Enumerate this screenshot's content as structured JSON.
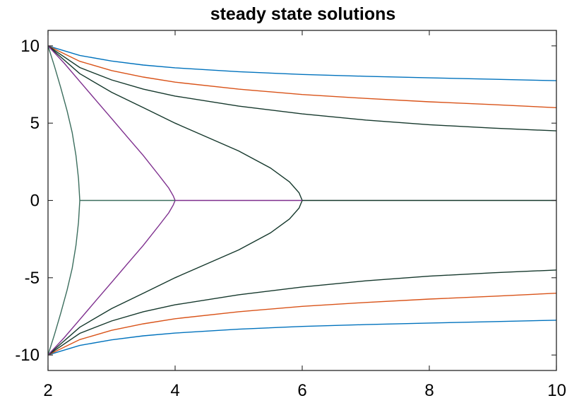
{
  "chart_data": {
    "type": "line",
    "title": "steady state solutions",
    "xlabel": "",
    "ylabel": "",
    "xlim": [
      2,
      10
    ],
    "ylim": [
      -11,
      11
    ],
    "grid": false,
    "legend": "none",
    "xticks": [
      2,
      4,
      6,
      8,
      10
    ],
    "xtick_labels": [
      "2",
      "4",
      "6",
      "8",
      "10"
    ],
    "yticks": [
      10,
      5,
      0,
      -5,
      -10
    ],
    "ytick_labels": [
      "10",
      "5",
      "0",
      "-5",
      "-10"
    ],
    "series": [
      {
        "color": "#0072bd",
        "x": [
          2,
          2.5,
          3,
          3.5,
          4,
          5,
          6,
          7,
          8,
          9,
          10
        ],
        "y": [
          10,
          9.38,
          9.02,
          8.76,
          8.58,
          8.33,
          8.15,
          8.03,
          7.93,
          7.84,
          7.75
        ]
      },
      {
        "color": "#0072bd",
        "x": [
          2,
          2.5,
          3,
          3.5,
          4,
          5,
          6,
          7,
          8,
          9,
          10
        ],
        "y": [
          -10,
          -9.38,
          -9.02,
          -8.76,
          -8.58,
          -8.33,
          -8.15,
          -8.03,
          -7.93,
          -7.84,
          -7.75
        ]
      },
      {
        "color": "#d95319",
        "x": [
          2,
          2.5,
          3,
          3.5,
          4,
          5,
          6,
          7,
          8,
          9,
          10
        ],
        "y": [
          10,
          9.0,
          8.4,
          7.98,
          7.65,
          7.2,
          6.85,
          6.6,
          6.38,
          6.2,
          6.0
        ]
      },
      {
        "color": "#d95319",
        "x": [
          2,
          2.5,
          3,
          3.5,
          4,
          5,
          6,
          7,
          8,
          9,
          10
        ],
        "y": [
          -10,
          -9.0,
          -8.4,
          -7.98,
          -7.65,
          -7.2,
          -6.85,
          -6.6,
          -6.38,
          -6.2,
          -6.0
        ]
      },
      {
        "color": "#15382c",
        "x": [
          2,
          2.5,
          3,
          3.5,
          4,
          5,
          6,
          7,
          8,
          9,
          10
        ],
        "y": [
          10,
          8.6,
          7.8,
          7.2,
          6.75,
          6.1,
          5.6,
          5.2,
          4.9,
          4.68,
          4.5
        ]
      },
      {
        "color": "#15382c",
        "x": [
          2,
          2.5,
          3,
          3.5,
          4,
          5,
          6,
          7,
          8,
          9,
          10
        ],
        "y": [
          -10,
          -8.6,
          -7.8,
          -7.2,
          -6.75,
          -6.1,
          -5.6,
          -5.2,
          -4.9,
          -4.68,
          -4.5
        ]
      },
      {
        "color": "#15382c",
        "x": [
          2,
          2.5,
          3,
          3.5,
          4,
          4.5,
          5,
          5.5,
          5.8,
          5.95,
          6,
          5.95,
          5.8,
          5.5,
          5,
          4.5,
          4,
          3.5,
          3,
          2.5,
          2
        ],
        "y": [
          10,
          8.2,
          7.0,
          6.0,
          5.0,
          4.1,
          3.2,
          2.1,
          1.2,
          0.5,
          0,
          -0.5,
          -1.2,
          -2.1,
          -3.2,
          -4.1,
          -5.0,
          -6.0,
          -7.0,
          -8.2,
          -10
        ]
      },
      {
        "color": "#15382c",
        "x": [
          6,
          7,
          8,
          9,
          10
        ],
        "y": [
          0,
          0,
          0,
          0,
          0
        ]
      },
      {
        "color": "#7e2f8e",
        "x": [
          2,
          2.25,
          2.5,
          2.75,
          3,
          3.25,
          3.5,
          3.75,
          3.9,
          3.97,
          4,
          3.97,
          3.9,
          3.75,
          3.5,
          3.25,
          3,
          2.75,
          2.5,
          2.25,
          2
        ],
        "y": [
          10,
          8.9,
          7.7,
          6.5,
          5.3,
          4.1,
          2.9,
          1.6,
          0.8,
          0.3,
          0,
          -0.3,
          -0.8,
          -1.6,
          -2.9,
          -4.1,
          -5.3,
          -6.5,
          -7.7,
          -8.9,
          -10
        ]
      },
      {
        "color": "#7e2f8e",
        "x": [
          4,
          5,
          6
        ],
        "y": [
          0,
          0,
          0
        ]
      },
      {
        "color": "#3c6e5e",
        "x": [
          2,
          2.1,
          2.2,
          2.3,
          2.38,
          2.44,
          2.48,
          2.5,
          2.48,
          2.44,
          2.38,
          2.3,
          2.2,
          2.1,
          2
        ],
        "y": [
          10,
          8.7,
          7.3,
          5.8,
          4.4,
          2.9,
          1.4,
          0,
          -1.4,
          -2.9,
          -4.4,
          -5.8,
          -7.3,
          -8.7,
          -10
        ]
      },
      {
        "color": "#3c6e5e",
        "x": [
          2.5,
          3,
          3.5,
          4
        ],
        "y": [
          0,
          0,
          0,
          0
        ]
      }
    ]
  }
}
